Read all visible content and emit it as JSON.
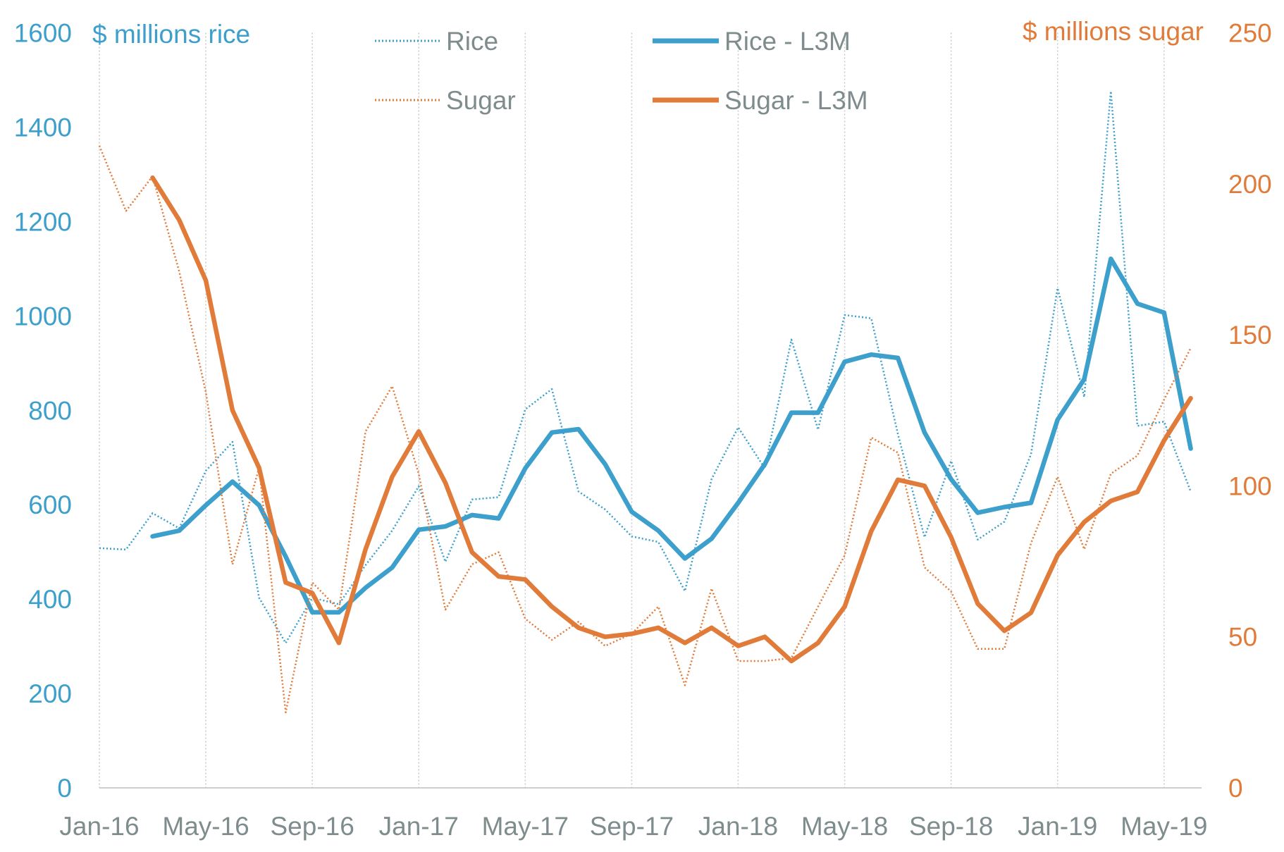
{
  "chart_data": {
    "type": "line",
    "left_axis_title": "$ millions rice",
    "right_axis_title": "$ millions sugar",
    "x": [
      "Jan-16",
      "Feb-16",
      "Mar-16",
      "Apr-16",
      "May-16",
      "Jun-16",
      "Jul-16",
      "Aug-16",
      "Sep-16",
      "Oct-16",
      "Nov-16",
      "Dec-16",
      "Jan-17",
      "Feb-17",
      "Mar-17",
      "Apr-17",
      "May-17",
      "Jun-17",
      "Jul-17",
      "Aug-17",
      "Sep-17",
      "Oct-17",
      "Nov-17",
      "Dec-17",
      "Jan-18",
      "Feb-18",
      "Mar-18",
      "Apr-18",
      "May-18",
      "Jun-18",
      "Jul-18",
      "Aug-18",
      "Sep-18",
      "Oct-18",
      "Nov-18",
      "Dec-18",
      "Jan-19",
      "Feb-19",
      "Mar-19",
      "Apr-19",
      "May-19",
      "Jun-19"
    ],
    "x_tick_labels": [
      "Jan-16",
      "May-16",
      "Sep-16",
      "Jan-17",
      "May-17",
      "Sep-17",
      "Jan-18",
      "May-18",
      "Sep-18",
      "Jan-19",
      "May-19"
    ],
    "left_ylim": [
      0,
      1600
    ],
    "left_ticks": [
      "0",
      "200",
      "400",
      "600",
      "800",
      "1000",
      "1200",
      "1400",
      "1600"
    ],
    "right_ylim": [
      0,
      250
    ],
    "right_ticks": [
      "0",
      "50",
      "100",
      "150",
      "200",
      "250"
    ],
    "grid": "vertical dotted at x ticks",
    "legend_placement": "top-center",
    "colors": {
      "rice": "#3C9FCC",
      "sugar": "#E07B39",
      "tick_text": "#7F8C8D"
    },
    "series": [
      {
        "name": "Rice",
        "axis": "left",
        "style": "dotted",
        "color": "#3C9FCC",
        "values": [
          508,
          505,
          582,
          550,
          672,
          733,
          403,
          307,
          403,
          389,
          472,
          545,
          639,
          479,
          611,
          616,
          802,
          845,
          628,
          590,
          533,
          521,
          417,
          654,
          764,
          677,
          950,
          759,
          1002,
          995,
          750,
          531,
          693,
          526,
          564,
          707,
          1059,
          828,
          1476,
          767,
          776,
          628
        ]
      },
      {
        "name": "Rice - L3M",
        "axis": "left",
        "style": "solid",
        "color": "#3C9FCC",
        "values": [
          null,
          null,
          533,
          545,
          599,
          649,
          599,
          490,
          372,
          372,
          424,
          467,
          547,
          554,
          578,
          571,
          677,
          753,
          760,
          686,
          585,
          545,
          486,
          528,
          604,
          686,
          795,
          795,
          903,
          918,
          911,
          753,
          654,
          583,
          595,
          604,
          780,
          866,
          1121,
          1026,
          1007,
          719
        ]
      },
      {
        "name": "Sugar",
        "axis": "right",
        "style": "dotted",
        "color": "#E07B39",
        "values": [
          212.6,
          191,
          202.5,
          171,
          131,
          74,
          106,
          25,
          68,
          59,
          118,
          133,
          104,
          59,
          74,
          78,
          56,
          49,
          55,
          47,
          51,
          60,
          34,
          66,
          42,
          42,
          43,
          60,
          77,
          116,
          111,
          73,
          65,
          46,
          46,
          81,
          103,
          79,
          104,
          110,
          128.5,
          145.6
        ]
      },
      {
        "name": "Sugar - L3M",
        "axis": "right",
        "style": "solid",
        "color": "#E07B39",
        "values": [
          null,
          null,
          202,
          188,
          168,
          125,
          106,
          68,
          64.5,
          48,
          79,
          103,
          118,
          101,
          78,
          70,
          69,
          60,
          53,
          50,
          51,
          53,
          48,
          53,
          47,
          50,
          42,
          48,
          60,
          85,
          102,
          100,
          83,
          61,
          52,
          58,
          77,
          88,
          95,
          98,
          115,
          129
        ]
      }
    ]
  }
}
